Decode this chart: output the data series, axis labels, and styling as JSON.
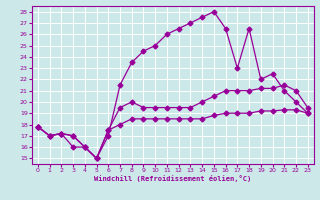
{
  "xlabel": "Windchill (Refroidissement éolien,°C)",
  "bg_color": "#cce8e8",
  "line_color": "#990099",
  "xlim": [
    -0.5,
    23.5
  ],
  "ylim": [
    14.5,
    28.5
  ],
  "yticks": [
    15,
    16,
    17,
    18,
    19,
    20,
    21,
    22,
    23,
    24,
    25,
    26,
    27,
    28
  ],
  "xticks": [
    0,
    1,
    2,
    3,
    4,
    5,
    6,
    7,
    8,
    9,
    10,
    11,
    12,
    13,
    14,
    15,
    16,
    17,
    18,
    19,
    20,
    21,
    22,
    23
  ],
  "line1_x": [
    0,
    1,
    2,
    3,
    4,
    5,
    6,
    7,
    8,
    9,
    10,
    11,
    12,
    13,
    14,
    15,
    16,
    17,
    18,
    19,
    20,
    21,
    22,
    23
  ],
  "line1_y": [
    17.8,
    17.0,
    17.2,
    17.0,
    16.0,
    15.0,
    17.5,
    18.0,
    18.5,
    18.5,
    18.5,
    18.5,
    18.5,
    18.5,
    18.5,
    18.8,
    19.0,
    19.0,
    19.0,
    19.2,
    19.2,
    19.3,
    19.3,
    19.0
  ],
  "line2_x": [
    0,
    1,
    2,
    3,
    4,
    5,
    6,
    7,
    8,
    9,
    10,
    11,
    12,
    13,
    14,
    15,
    16,
    17,
    18,
    19,
    20,
    21,
    22,
    23
  ],
  "line2_y": [
    17.8,
    17.0,
    17.2,
    17.0,
    16.0,
    15.0,
    17.5,
    19.5,
    20.0,
    19.5,
    19.5,
    19.5,
    19.5,
    19.5,
    20.0,
    20.5,
    21.0,
    21.0,
    21.0,
    21.2,
    21.2,
    21.5,
    21.0,
    19.5
  ],
  "line3_x": [
    0,
    1,
    2,
    3,
    4,
    5,
    6,
    7,
    8,
    9,
    10,
    11,
    12,
    13,
    14,
    15,
    16,
    17,
    18,
    19,
    20,
    21,
    22,
    23
  ],
  "line3_y": [
    17.8,
    17.0,
    17.2,
    16.0,
    16.0,
    15.0,
    17.0,
    21.5,
    23.5,
    24.5,
    25.0,
    26.0,
    26.5,
    27.0,
    27.5,
    28.0,
    26.5,
    23.0,
    26.5,
    22.0,
    22.5,
    21.0,
    20.0,
    19.0
  ]
}
